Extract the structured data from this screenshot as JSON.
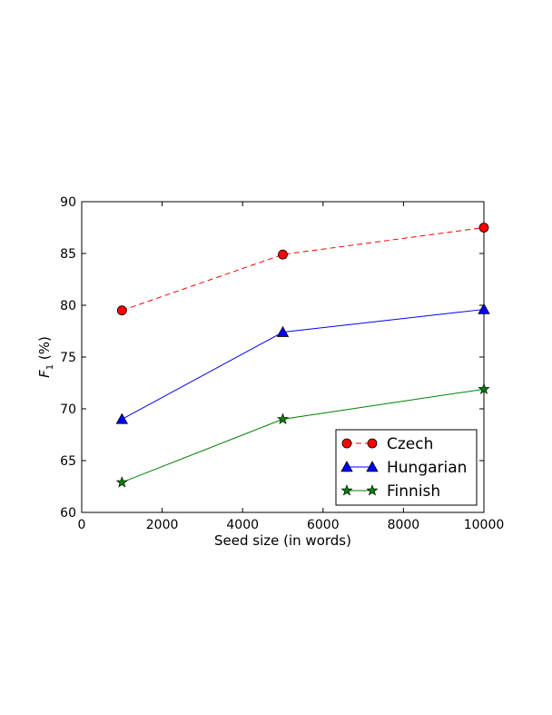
{
  "chart_data": {
    "type": "line",
    "xlabel": "Seed size (in words)",
    "ylabel_main": "F",
    "ylabel_sub": "1",
    "ylabel_suffix": " (%)",
    "xlim": [
      0,
      10000
    ],
    "ylim": [
      60,
      90
    ],
    "xticks": [
      0,
      2000,
      4000,
      6000,
      8000,
      10000
    ],
    "yticks": [
      60,
      65,
      70,
      75,
      80,
      85,
      90
    ],
    "grid": false,
    "legend_position": "lower-right",
    "x": [
      1000,
      5000,
      10000
    ],
    "series": [
      {
        "name": "Czech",
        "values": [
          79.5,
          84.9,
          87.5
        ],
        "color": "#ff0000",
        "marker": "circle",
        "line": "dashed"
      },
      {
        "name": "Hungarian",
        "values": [
          69.0,
          77.4,
          79.6
        ],
        "color": "#0000ff",
        "marker": "triangle",
        "line": "solid"
      },
      {
        "name": "Finnish",
        "values": [
          62.9,
          69.0,
          71.9
        ],
        "color": "#008000",
        "marker": "star",
        "line": "solid"
      }
    ]
  }
}
